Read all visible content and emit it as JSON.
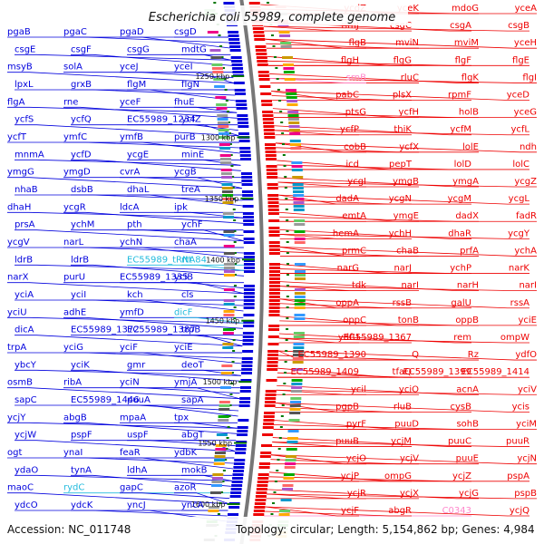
{
  "title": "Escherichia coli 55989, complete genome",
  "accession": "Accession: NC_011748",
  "topology": "Topology: circular; Length: 5,154,862 bp; Genes: 4,984",
  "colors": {
    "forward": "#0000dd",
    "reverse": "#ee0000",
    "rna": "#22bbdd",
    "pseudo": "#ff88cc",
    "backbone": "#777777",
    "tick": "#007700"
  },
  "ticks": [
    "1250 kbp",
    "1300 kbp",
    "1350 kbp",
    "1400 kbp",
    "1450 kbp",
    "1500 kbp",
    "1550 kbp",
    "1600 kbp"
  ],
  "left_labels": [
    {
      "text": "pgaB",
      "color": "forward"
    },
    {
      "text": "pgaC",
      "color": "forward"
    },
    {
      "text": "pgaD",
      "color": "forward"
    },
    {
      "text": "csgD",
      "color": "forward"
    },
    {
      "text": "csgE",
      "color": "forward"
    },
    {
      "text": "csgF",
      "color": "forward"
    },
    {
      "text": "csgG",
      "color": "forward"
    },
    {
      "text": "mdtG",
      "color": "forward"
    },
    {
      "text": "msyB",
      "color": "forward"
    },
    {
      "text": "solA",
      "color": "forward"
    },
    {
      "text": "yceJ",
      "color": "forward"
    },
    {
      "text": "yceI",
      "color": "forward"
    },
    {
      "text": "lpxL",
      "color": "forward"
    },
    {
      "text": "grxB",
      "color": "forward"
    },
    {
      "text": "flgM",
      "color": "forward"
    },
    {
      "text": "flgN",
      "color": "forward"
    },
    {
      "text": "flgA",
      "color": "forward"
    },
    {
      "text": "rne",
      "color": "forward"
    },
    {
      "text": "yceF",
      "color": "forward"
    },
    {
      "text": "fhuE",
      "color": "forward"
    },
    {
      "text": "ycfS",
      "color": "forward"
    },
    {
      "text": "ycfQ",
      "color": "forward"
    },
    {
      "text": "EC55989_1234",
      "color": "forward"
    },
    {
      "text": "ycfZ",
      "color": "forward"
    },
    {
      "text": "ycfT",
      "color": "forward"
    },
    {
      "text": "ymfC",
      "color": "forward"
    },
    {
      "text": "ymfB",
      "color": "forward"
    },
    {
      "text": "purB",
      "color": "forward"
    },
    {
      "text": "mnmA",
      "color": "forward"
    },
    {
      "text": "ycfD",
      "color": "forward"
    },
    {
      "text": "ycgE",
      "color": "forward"
    },
    {
      "text": "minE",
      "color": "forward"
    },
    {
      "text": "ymgG",
      "color": "forward"
    },
    {
      "text": "ymgD",
      "color": "forward"
    },
    {
      "text": "cvrA",
      "color": "forward"
    },
    {
      "text": "ycgB",
      "color": "forward"
    },
    {
      "text": "nhaB",
      "color": "forward"
    },
    {
      "text": "dsbB",
      "color": "forward"
    },
    {
      "text": "dhaL",
      "color": "forward"
    },
    {
      "text": "treA",
      "color": "forward"
    },
    {
      "text": "dhaH",
      "color": "forward"
    },
    {
      "text": "ycgR",
      "color": "forward"
    },
    {
      "text": "ldcA",
      "color": "forward"
    },
    {
      "text": "ipk",
      "color": "forward"
    },
    {
      "text": "prsA",
      "color": "forward"
    },
    {
      "text": "ychM",
      "color": "forward"
    },
    {
      "text": "pth",
      "color": "forward"
    },
    {
      "text": "ychF",
      "color": "forward"
    },
    {
      "text": "ycgV",
      "color": "forward"
    },
    {
      "text": "narL",
      "color": "forward"
    },
    {
      "text": "ychN",
      "color": "forward"
    },
    {
      "text": "chaA",
      "color": "forward"
    },
    {
      "text": "ldrB",
      "color": "forward"
    },
    {
      "text": "ldrB",
      "color": "forward"
    },
    {
      "text": "EC55989_tRNA84",
      "color": "rna"
    },
    {
      "text": "rtt",
      "color": "rna"
    },
    {
      "text": "narX",
      "color": "forward"
    },
    {
      "text": "purU",
      "color": "forward"
    },
    {
      "text": "EC55989_1335",
      "color": "forward"
    },
    {
      "text": "yciB",
      "color": "forward"
    },
    {
      "text": "yciA",
      "color": "forward"
    },
    {
      "text": "yciI",
      "color": "forward"
    },
    {
      "text": "kch",
      "color": "forward"
    },
    {
      "text": "cls",
      "color": "forward"
    },
    {
      "text": "yciU",
      "color": "forward"
    },
    {
      "text": "adhE",
      "color": "forward"
    },
    {
      "text": "ymfD",
      "color": "forward"
    },
    {
      "text": "dicF",
      "color": "rna"
    },
    {
      "text": "dicA",
      "color": "forward"
    },
    {
      "text": "EC55989_1372",
      "color": "forward"
    },
    {
      "text": "EC55989_1387",
      "color": "forward"
    },
    {
      "text": "trpB",
      "color": "forward"
    },
    {
      "text": "trpA",
      "color": "forward"
    },
    {
      "text": "yciG",
      "color": "forward"
    },
    {
      "text": "yciF",
      "color": "forward"
    },
    {
      "text": "yciE",
      "color": "forward"
    },
    {
      "text": "ybcY",
      "color": "forward"
    },
    {
      "text": "yciK",
      "color": "forward"
    },
    {
      "text": "gmr",
      "color": "forward"
    },
    {
      "text": "deoT",
      "color": "forward"
    },
    {
      "text": "osmB",
      "color": "forward"
    },
    {
      "text": "ribA",
      "color": "forward"
    },
    {
      "text": "yciN",
      "color": "forward"
    },
    {
      "text": "ymjA",
      "color": "forward"
    },
    {
      "text": "sapC",
      "color": "forward"
    },
    {
      "text": "EC55989_1446",
      "color": "forward"
    },
    {
      "text": "puuA",
      "color": "forward"
    },
    {
      "text": "sapA",
      "color": "forward"
    },
    {
      "text": "ycjY",
      "color": "forward"
    },
    {
      "text": "abgB",
      "color": "forward"
    },
    {
      "text": "mpaA",
      "color": "forward"
    },
    {
      "text": "tpx",
      "color": "forward"
    },
    {
      "text": "ycjW",
      "color": "forward"
    },
    {
      "text": "pspF",
      "color": "forward"
    },
    {
      "text": "uspF",
      "color": "forward"
    },
    {
      "text": "abgT",
      "color": "forward"
    },
    {
      "text": "ogt",
      "color": "forward"
    },
    {
      "text": "ynaI",
      "color": "forward"
    },
    {
      "text": "feaR",
      "color": "forward"
    },
    {
      "text": "ydbK",
      "color": "forward"
    },
    {
      "text": "ydaO",
      "color": "forward"
    },
    {
      "text": "tynA",
      "color": "forward"
    },
    {
      "text": "ldhA",
      "color": "forward"
    },
    {
      "text": "mokB",
      "color": "forward"
    },
    {
      "text": "maoC",
      "color": "forward"
    },
    {
      "text": "rydC",
      "color": "rna"
    },
    {
      "text": "gapC",
      "color": "forward"
    },
    {
      "text": "azoR",
      "color": "forward"
    },
    {
      "text": "ydcO",
      "color": "forward"
    },
    {
      "text": "ydcK",
      "color": "forward"
    },
    {
      "text": "yncJ",
      "color": "forward"
    },
    {
      "text": "yncA",
      "color": "forward"
    }
  ],
  "right_labels": [
    {
      "text": "yceA",
      "color": "reverse"
    },
    {
      "text": "mdoG",
      "color": "reverse"
    },
    {
      "text": "yceK",
      "color": "reverse"
    },
    {
      "text": "ycdZ",
      "color": "reverse"
    },
    {
      "text": "csgB",
      "color": "reverse"
    },
    {
      "text": "csgA",
      "color": "reverse"
    },
    {
      "text": "csgC",
      "color": "reverse"
    },
    {
      "text": "rimJ",
      "color": "reverse"
    },
    {
      "text": "yceH",
      "color": "reverse"
    },
    {
      "text": "mviM",
      "color": "reverse"
    },
    {
      "text": "mviN",
      "color": "reverse"
    },
    {
      "text": "flgB",
      "color": "reverse"
    },
    {
      "text": "flgE",
      "color": "reverse"
    },
    {
      "text": "flgF",
      "color": "reverse"
    },
    {
      "text": "flgG",
      "color": "reverse"
    },
    {
      "text": "flgH",
      "color": "reverse"
    },
    {
      "text": "flgI",
      "color": "reverse"
    },
    {
      "text": "flgK",
      "color": "reverse"
    },
    {
      "text": "rluC",
      "color": "reverse"
    },
    {
      "text": "srnB",
      "color": "pseudo"
    },
    {
      "text": "yceD",
      "color": "reverse"
    },
    {
      "text": "rpmF",
      "color": "reverse"
    },
    {
      "text": "plsX",
      "color": "reverse"
    },
    {
      "text": "pabC",
      "color": "reverse"
    },
    {
      "text": "yceG",
      "color": "reverse"
    },
    {
      "text": "holB",
      "color": "reverse"
    },
    {
      "text": "ycfH",
      "color": "reverse"
    },
    {
      "text": "ptsG",
      "color": "reverse"
    },
    {
      "text": "ycfL",
      "color": "reverse"
    },
    {
      "text": "ycfM",
      "color": "reverse"
    },
    {
      "text": "thiK",
      "color": "reverse"
    },
    {
      "text": "ycfP",
      "color": "reverse"
    },
    {
      "text": "ndh",
      "color": "reverse"
    },
    {
      "text": "lolE",
      "color": "reverse"
    },
    {
      "text": "ycfX",
      "color": "reverse"
    },
    {
      "text": "cobB",
      "color": "reverse"
    },
    {
      "text": "lolC",
      "color": "reverse"
    },
    {
      "text": "lolD",
      "color": "reverse"
    },
    {
      "text": "pepT",
      "color": "reverse"
    },
    {
      "text": "icd",
      "color": "reverse"
    },
    {
      "text": "ycgZ",
      "color": "reverse"
    },
    {
      "text": "ymgA",
      "color": "reverse"
    },
    {
      "text": "ymgB",
      "color": "reverse"
    },
    {
      "text": "ycgI",
      "color": "reverse"
    },
    {
      "text": "ycgL",
      "color": "reverse"
    },
    {
      "text": "ycgM",
      "color": "reverse"
    },
    {
      "text": "ycgN",
      "color": "reverse"
    },
    {
      "text": "dadA",
      "color": "reverse"
    },
    {
      "text": "fadR",
      "color": "reverse"
    },
    {
      "text": "dadX",
      "color": "reverse"
    },
    {
      "text": "ymgE",
      "color": "reverse"
    },
    {
      "text": "emtA",
      "color": "reverse"
    },
    {
      "text": "ycgY",
      "color": "reverse"
    },
    {
      "text": "dhaR",
      "color": "reverse"
    },
    {
      "text": "ychH",
      "color": "reverse"
    },
    {
      "text": "hemA",
      "color": "reverse"
    },
    {
      "text": "ychA",
      "color": "reverse"
    },
    {
      "text": "prfA",
      "color": "reverse"
    },
    {
      "text": "chaB",
      "color": "reverse"
    },
    {
      "text": "prmC",
      "color": "reverse"
    },
    {
      "text": "narK",
      "color": "reverse"
    },
    {
      "text": "ychP",
      "color": "reverse"
    },
    {
      "text": "narJ",
      "color": "reverse"
    },
    {
      "text": "narG",
      "color": "reverse"
    },
    {
      "text": "narI",
      "color": "reverse"
    },
    {
      "text": "narH",
      "color": "reverse"
    },
    {
      "text": "narI",
      "color": "reverse"
    },
    {
      "text": "tdk",
      "color": "reverse"
    },
    {
      "text": "rssA",
      "color": "reverse"
    },
    {
      "text": "galU",
      "color": "reverse"
    },
    {
      "text": "rssB",
      "color": "reverse"
    },
    {
      "text": "oppA",
      "color": "reverse"
    },
    {
      "text": "yciE",
      "color": "reverse"
    },
    {
      "text": "oppB",
      "color": "reverse"
    },
    {
      "text": "tonB",
      "color": "reverse"
    },
    {
      "text": "oppC",
      "color": "reverse"
    },
    {
      "text": "ompW",
      "color": "reverse"
    },
    {
      "text": "rem",
      "color": "reverse"
    },
    {
      "text": "EC55989_1367",
      "color": "reverse"
    },
    {
      "text": "ydfU",
      "color": "reverse"
    },
    {
      "text": "ydfO",
      "color": "reverse"
    },
    {
      "text": "Rz",
      "color": "reverse"
    },
    {
      "text": "Q",
      "color": "reverse"
    },
    {
      "text": "EC55989_1390",
      "color": "reverse"
    },
    {
      "text": "EC55989_1414",
      "color": "reverse"
    },
    {
      "text": "EC55989_1399",
      "color": "reverse"
    },
    {
      "text": "tfaQ",
      "color": "reverse"
    },
    {
      "text": "EC55989_1409",
      "color": "reverse"
    },
    {
      "text": "yciV",
      "color": "reverse"
    },
    {
      "text": "acnA",
      "color": "reverse"
    },
    {
      "text": "yciO",
      "color": "reverse"
    },
    {
      "text": "ycil",
      "color": "reverse"
    },
    {
      "text": "ycis",
      "color": "reverse"
    },
    {
      "text": "cysB",
      "color": "reverse"
    },
    {
      "text": "rluB",
      "color": "reverse"
    },
    {
      "text": "pgpB",
      "color": "reverse"
    },
    {
      "text": "yciM",
      "color": "reverse"
    },
    {
      "text": "sohB",
      "color": "reverse"
    },
    {
      "text": "puuD",
      "color": "reverse"
    },
    {
      "text": "pyrF",
      "color": "reverse"
    },
    {
      "text": "puuR",
      "color": "reverse"
    },
    {
      "text": "puuC",
      "color": "reverse"
    },
    {
      "text": "ycjM",
      "color": "reverse"
    },
    {
      "text": "puuB",
      "color": "reverse"
    },
    {
      "text": "ycjN",
      "color": "reverse"
    },
    {
      "text": "puuE",
      "color": "reverse"
    },
    {
      "text": "ycjV",
      "color": "reverse"
    },
    {
      "text": "ycjO",
      "color": "reverse"
    },
    {
      "text": "pspA",
      "color": "reverse"
    },
    {
      "text": "ycjZ",
      "color": "reverse"
    },
    {
      "text": "ompG",
      "color": "reverse"
    },
    {
      "text": "ycjP",
      "color": "reverse"
    },
    {
      "text": "pspB",
      "color": "reverse"
    },
    {
      "text": "ycjG",
      "color": "reverse"
    },
    {
      "text": "ycjX",
      "color": "reverse"
    },
    {
      "text": "ycjR",
      "color": "reverse"
    },
    {
      "text": "ycjQ",
      "color": "reverse"
    },
    {
      "text": "C0343",
      "color": "pseudo"
    },
    {
      "text": "abgR",
      "color": "reverse"
    },
    {
      "text": "ycjF",
      "color": "reverse"
    }
  ]
}
